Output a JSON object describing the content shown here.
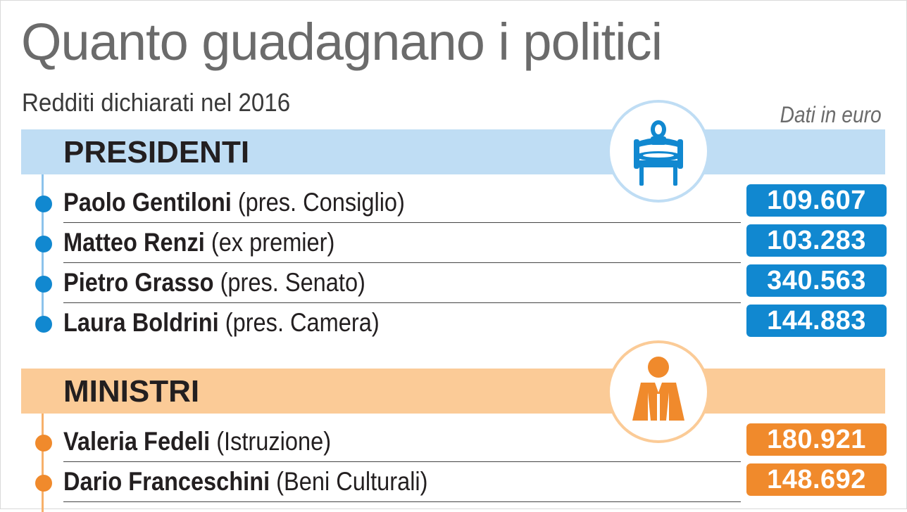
{
  "title": "Quanto guadagnano i politici",
  "subtitle": "Redditi dichiarati nel 2016",
  "unit_note": "Dati in euro",
  "colors": {
    "blue_accent": "#1188d0",
    "blue_band": "#bfddf4",
    "orange_accent": "#f08a2c",
    "orange_band": "#fbcb97"
  },
  "sections": [
    {
      "label": "PRESIDENTI",
      "icon": "chair-icon",
      "rows": [
        {
          "name": "Paolo Gentiloni",
          "role": "(pres. Consiglio)",
          "value": "109.607"
        },
        {
          "name": "Matteo Renzi",
          "role": "(ex premier)",
          "value": "103.283"
        },
        {
          "name": "Pietro Grasso",
          "role": "(pres. Senato)",
          "value": "340.563"
        },
        {
          "name": "Laura Boldrini",
          "role": "(pres. Camera)",
          "value": "144.883"
        }
      ]
    },
    {
      "label": "MINISTRI",
      "icon": "minister-person-icon",
      "rows": [
        {
          "name": "Valeria Fedeli",
          "role": "(Istruzione)",
          "value": "180.921"
        },
        {
          "name": "Dario Franceschini",
          "role": "(Beni Culturali)",
          "value": "148.692"
        }
      ]
    }
  ]
}
